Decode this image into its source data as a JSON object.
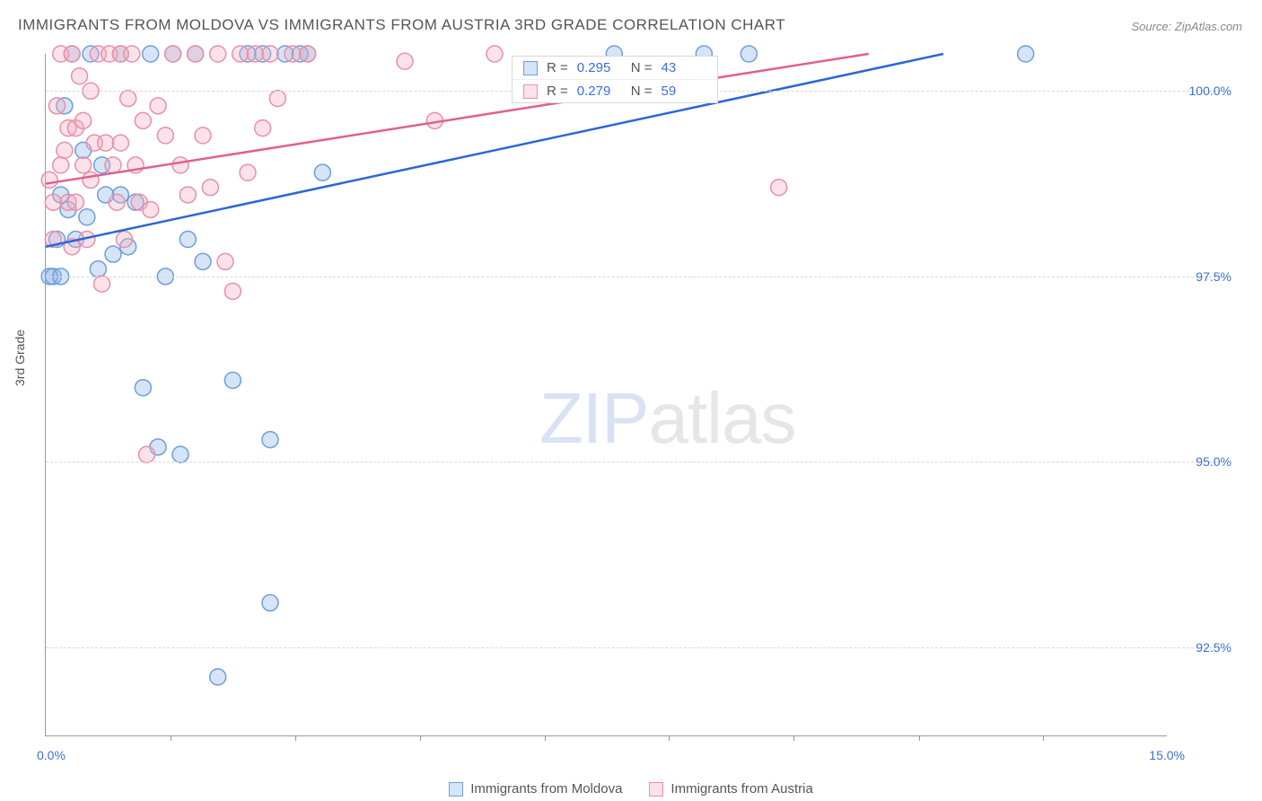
{
  "title": "IMMIGRANTS FROM MOLDOVA VS IMMIGRANTS FROM AUSTRIA 3RD GRADE CORRELATION CHART",
  "source": "Source: ZipAtlas.com",
  "ylabel": "3rd Grade",
  "watermark": {
    "a": "ZIP",
    "b": "atlas"
  },
  "chart": {
    "type": "scatter",
    "xlim": [
      0.0,
      15.0
    ],
    "ylim": [
      91.3,
      100.5
    ],
    "xtick_positions": [
      1.67,
      3.33,
      5.0,
      6.67,
      8.33,
      10.0,
      11.67,
      13.33
    ],
    "xmin_label": "0.0%",
    "xmax_label": "15.0%",
    "yticks": [
      {
        "v": 100.0,
        "label": "100.0%"
      },
      {
        "v": 97.5,
        "label": "97.5%"
      },
      {
        "v": 95.0,
        "label": "95.0%"
      },
      {
        "v": 92.5,
        "label": "92.5%"
      }
    ],
    "grid_color": "#d8d8d8",
    "axis_color": "#999999",
    "background_color": "#ffffff",
    "point_radius": 9,
    "point_stroke_width": 1.5,
    "line_width": 2.5,
    "series": [
      {
        "name": "Immigrants from Moldova",
        "color_fill": "rgba(135,178,232,0.35)",
        "color_stroke": "#6f9fd8",
        "line_color": "#2b67d6",
        "R": "0.295",
        "N": "43",
        "trend": {
          "x1": 0.0,
          "y1": 97.9,
          "x2": 12.0,
          "y2": 100.5
        },
        "points": [
          [
            0.05,
            97.5
          ],
          [
            0.1,
            97.5
          ],
          [
            0.15,
            98.0
          ],
          [
            0.2,
            98.6
          ],
          [
            0.3,
            98.4
          ],
          [
            0.25,
            99.8
          ],
          [
            0.35,
            100.5
          ],
          [
            0.4,
            98.0
          ],
          [
            0.5,
            99.2
          ],
          [
            0.55,
            98.3
          ],
          [
            0.6,
            100.5
          ],
          [
            0.7,
            97.6
          ],
          [
            0.75,
            99.0
          ],
          [
            0.8,
            98.6
          ],
          [
            0.9,
            97.8
          ],
          [
            1.0,
            98.6
          ],
          [
            1.0,
            100.5
          ],
          [
            1.1,
            97.9
          ],
          [
            1.2,
            98.5
          ],
          [
            1.3,
            96.0
          ],
          [
            1.4,
            100.5
          ],
          [
            1.5,
            95.2
          ],
          [
            1.6,
            97.5
          ],
          [
            1.7,
            100.5
          ],
          [
            1.8,
            95.1
          ],
          [
            1.9,
            98.0
          ],
          [
            2.0,
            100.5
          ],
          [
            2.1,
            97.7
          ],
          [
            2.3,
            92.1
          ],
          [
            2.5,
            96.1
          ],
          [
            2.7,
            100.5
          ],
          [
            2.9,
            100.5
          ],
          [
            3.0,
            95.3
          ],
          [
            3.0,
            93.1
          ],
          [
            3.2,
            100.5
          ],
          [
            3.4,
            100.5
          ],
          [
            3.5,
            100.5
          ],
          [
            3.7,
            98.9
          ],
          [
            7.6,
            100.5
          ],
          [
            8.8,
            100.5
          ],
          [
            9.4,
            100.5
          ],
          [
            13.1,
            100.5
          ],
          [
            0.2,
            97.5
          ]
        ]
      },
      {
        "name": "Immigrants from Austria",
        "color_fill": "rgba(244,172,192,0.35)",
        "color_stroke": "#e890a8",
        "line_color": "#e06090",
        "R": "0.279",
        "N": "59",
        "trend": {
          "x1": 0.0,
          "y1": 98.75,
          "x2": 11.0,
          "y2": 100.5
        },
        "points": [
          [
            0.05,
            98.8
          ],
          [
            0.1,
            98.0
          ],
          [
            0.1,
            98.5
          ],
          [
            0.15,
            99.8
          ],
          [
            0.2,
            99.0
          ],
          [
            0.2,
            100.5
          ],
          [
            0.25,
            99.2
          ],
          [
            0.3,
            99.5
          ],
          [
            0.3,
            98.5
          ],
          [
            0.35,
            100.5
          ],
          [
            0.35,
            97.9
          ],
          [
            0.4,
            98.5
          ],
          [
            0.4,
            99.5
          ],
          [
            0.45,
            100.2
          ],
          [
            0.5,
            99.0
          ],
          [
            0.5,
            99.6
          ],
          [
            0.55,
            98.0
          ],
          [
            0.6,
            100.0
          ],
          [
            0.6,
            98.8
          ],
          [
            0.65,
            99.3
          ],
          [
            0.7,
            100.5
          ],
          [
            0.75,
            97.4
          ],
          [
            0.8,
            99.3
          ],
          [
            0.85,
            100.5
          ],
          [
            0.9,
            99.0
          ],
          [
            0.95,
            98.5
          ],
          [
            1.0,
            100.5
          ],
          [
            1.0,
            99.3
          ],
          [
            1.05,
            98.0
          ],
          [
            1.1,
            99.9
          ],
          [
            1.15,
            100.5
          ],
          [
            1.2,
            99.0
          ],
          [
            1.25,
            98.5
          ],
          [
            1.3,
            99.6
          ],
          [
            1.35,
            95.1
          ],
          [
            1.4,
            98.4
          ],
          [
            1.5,
            99.8
          ],
          [
            1.6,
            99.4
          ],
          [
            1.7,
            100.5
          ],
          [
            1.8,
            99.0
          ],
          [
            1.9,
            98.6
          ],
          [
            2.0,
            100.5
          ],
          [
            2.1,
            99.4
          ],
          [
            2.2,
            98.7
          ],
          [
            2.3,
            100.5
          ],
          [
            2.4,
            97.7
          ],
          [
            2.5,
            97.3
          ],
          [
            2.6,
            100.5
          ],
          [
            2.7,
            98.9
          ],
          [
            2.8,
            100.5
          ],
          [
            2.9,
            99.5
          ],
          [
            3.0,
            100.5
          ],
          [
            3.1,
            99.9
          ],
          [
            3.3,
            100.5
          ],
          [
            3.5,
            100.5
          ],
          [
            4.8,
            100.4
          ],
          [
            5.2,
            99.6
          ],
          [
            6.0,
            100.5
          ],
          [
            9.8,
            98.7
          ]
        ]
      }
    ]
  }
}
